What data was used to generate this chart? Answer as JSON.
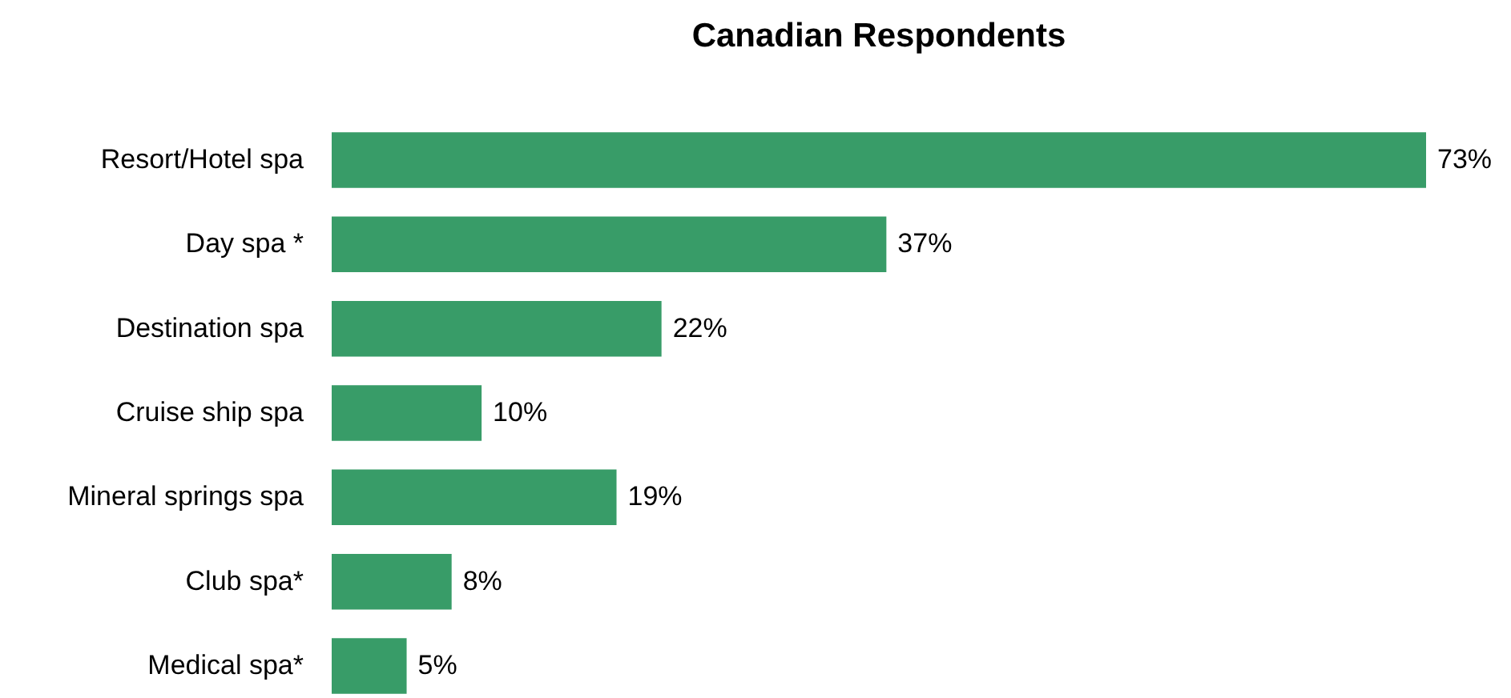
{
  "chart_data": {
    "type": "bar",
    "orientation": "horizontal",
    "title": "Canadian Respondents",
    "categories": [
      "Resort/Hotel spa",
      "Day spa *",
      "Destination spa",
      "Cruise ship spa",
      "Mineral springs spa",
      "Club spa*",
      "Medical spa*"
    ],
    "values": [
      73,
      37,
      22,
      10,
      19,
      8,
      5
    ],
    "value_labels": [
      "73%",
      "37%",
      "22%",
      "10%",
      "19%",
      "8%",
      "5%"
    ],
    "color": "#389c68"
  }
}
